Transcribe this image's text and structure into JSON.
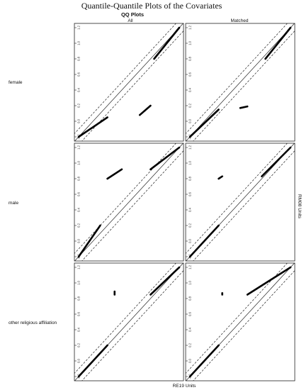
{
  "figure": {
    "title": "Quantile-Quantile Plots of the Covariates",
    "subtitle": "QQ Plots",
    "col_labels": [
      "All",
      "Matched"
    ],
    "row_labels": [
      "female",
      "male",
      "other religious affiliation"
    ],
    "xlabel": "RE19 Units",
    "ylabel": "RM08 Units",
    "ticks": [
      "-0.2",
      "0.0",
      "0.2",
      "0.4",
      "0.6",
      "0.8",
      "1.0",
      "1.2"
    ]
  },
  "chart_data": [
    {
      "type": "scatter",
      "row": "female",
      "col": "All",
      "xlim": [
        -0.2,
        1.2
      ],
      "ylim": [
        -0.2,
        1.2
      ],
      "reference_lines": [
        "y = x",
        "y = x + 0.1",
        "y = x - 0.1"
      ],
      "segments": [
        {
          "x": [
            -0.2,
            0.2
          ],
          "y": [
            -0.2,
            0.05
          ]
        },
        {
          "x": [
            0.65,
            0.8
          ],
          "y": [
            0.08,
            0.2
          ]
        },
        {
          "x": [
            0.85,
            1.2
          ],
          "y": [
            0.8,
            1.2
          ]
        }
      ]
    },
    {
      "type": "scatter",
      "row": "female",
      "col": "Matched",
      "xlim": [
        -0.2,
        1.2
      ],
      "ylim": [
        -0.2,
        1.2
      ],
      "reference_lines": [
        "y = x",
        "y = x + 0.1",
        "y = x - 0.1"
      ],
      "segments": [
        {
          "x": [
            -0.2,
            0.2
          ],
          "y": [
            -0.2,
            0.15
          ]
        },
        {
          "x": [
            0.5,
            0.6
          ],
          "y": [
            0.17,
            0.19
          ]
        },
        {
          "x": [
            0.85,
            1.2
          ],
          "y": [
            0.8,
            1.2
          ]
        }
      ]
    },
    {
      "type": "scatter",
      "row": "male",
      "col": "All",
      "xlim": [
        -0.2,
        1.2
      ],
      "ylim": [
        -0.2,
        1.2
      ],
      "reference_lines": [
        "y = x",
        "y = x + 0.1",
        "y = x - 0.1"
      ],
      "segments": [
        {
          "x": [
            -0.2,
            0.1
          ],
          "y": [
            -0.2,
            0.2
          ]
        },
        {
          "x": [
            0.2,
            0.4
          ],
          "y": [
            0.8,
            0.92
          ]
        },
        {
          "x": [
            0.8,
            1.2
          ],
          "y": [
            0.92,
            1.2
          ]
        }
      ]
    },
    {
      "type": "scatter",
      "row": "male",
      "col": "Matched",
      "xlim": [
        -0.2,
        1.2
      ],
      "ylim": [
        -0.2,
        1.2
      ],
      "reference_lines": [
        "y = x",
        "y = x + 0.1",
        "y = x - 0.1"
      ],
      "segments": [
        {
          "x": [
            -0.2,
            0.2
          ],
          "y": [
            -0.2,
            0.2
          ]
        },
        {
          "x": [
            0.2,
            0.25
          ],
          "y": [
            0.8,
            0.83
          ]
        },
        {
          "x": [
            0.8,
            1.2
          ],
          "y": [
            0.83,
            1.2
          ]
        }
      ]
    },
    {
      "type": "scatter",
      "row": "other religious affiliation",
      "col": "All",
      "xlim": [
        -0.2,
        1.2
      ],
      "ylim": [
        -0.2,
        1.2
      ],
      "reference_lines": [
        "y = x",
        "y = x + 0.1",
        "y = x - 0.1"
      ],
      "segments": [
        {
          "x": [
            -0.2,
            0.2
          ],
          "y": [
            -0.2,
            0.2
          ]
        },
        {
          "x": [
            0.3,
            0.3
          ],
          "y": [
            0.85,
            0.89
          ]
        },
        {
          "x": [
            0.8,
            1.2
          ],
          "y": [
            0.85,
            1.2
          ]
        }
      ]
    },
    {
      "type": "scatter",
      "row": "other religious affiliation",
      "col": "Matched",
      "xlim": [
        -0.2,
        1.2
      ],
      "ylim": [
        -0.2,
        1.2
      ],
      "reference_lines": [
        "y = x",
        "y = x + 0.1",
        "y = x - 0.1"
      ],
      "segments": [
        {
          "x": [
            -0.2,
            0.2
          ],
          "y": [
            -0.2,
            0.2
          ]
        },
        {
          "x": [
            0.25,
            0.25
          ],
          "y": [
            0.85,
            0.87
          ]
        },
        {
          "x": [
            0.6,
            1.2
          ],
          "y": [
            0.85,
            1.2
          ]
        }
      ]
    }
  ]
}
